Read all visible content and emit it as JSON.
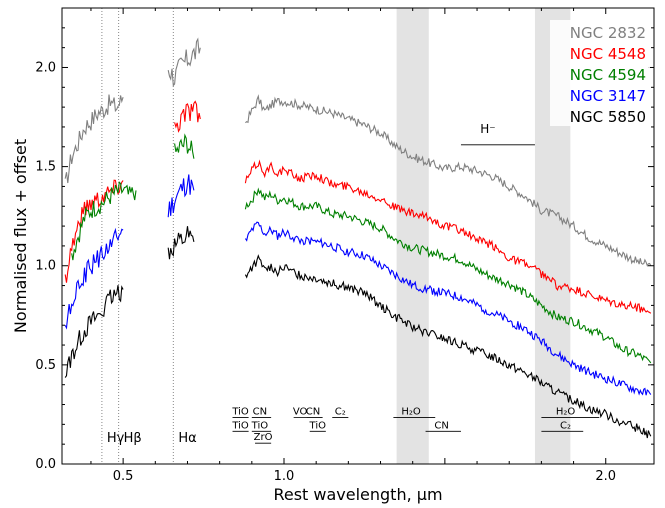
{
  "chart_data": {
    "type": "line",
    "xlabel": "Rest wavelength, μm",
    "ylabel": "Normalised flux + offset",
    "xlim": [
      0.31,
      2.15
    ],
    "ylim": [
      0.0,
      2.3
    ],
    "x_ticks": [
      {
        "value": 0.5,
        "label": "0.5"
      },
      {
        "value": 1.0,
        "label": "1.0"
      },
      {
        "value": 1.5,
        "label": ""
      },
      {
        "value": 2.0,
        "label": "2.0"
      }
    ],
    "y_ticks": [
      {
        "value": 0.0,
        "label": "0.0"
      },
      {
        "value": 0.5,
        "label": "0.5"
      },
      {
        "value": 1.0,
        "label": "1.0"
      },
      {
        "value": 1.5,
        "label": "1.5"
      },
      {
        "value": 2.0,
        "label": "2.0"
      }
    ],
    "shaded_regions": [
      [
        1.35,
        1.45
      ],
      [
        1.78,
        1.89
      ]
    ],
    "balmer_lines": [
      {
        "x": 0.434,
        "label": "Hγ"
      },
      {
        "x": 0.486,
        "label": "Hβ"
      },
      {
        "x": 0.656,
        "label": "Hα"
      }
    ],
    "band_labels": [
      {
        "label": "TiO",
        "x": 0.865,
        "row": 0,
        "x0": 0.84,
        "x1": 0.89
      },
      {
        "label": "CN",
        "x": 0.925,
        "row": 0,
        "x0": 0.9,
        "x1": 0.96
      },
      {
        "label": "TiO",
        "x": 0.865,
        "row": 1,
        "x0": 0.84,
        "x1": 0.89
      },
      {
        "label": "TiO",
        "x": 0.925,
        "row": 1,
        "x0": 0.9,
        "x1": 0.96
      },
      {
        "label": "ZrO",
        "x": 0.935,
        "row": 2,
        "x0": 0.91,
        "x1": 0.96
      },
      {
        "label": "VO",
        "x": 1.05,
        "row": 0,
        "x0": 1.03,
        "x1": 1.07
      },
      {
        "label": "CN",
        "x": 1.09,
        "row": 0,
        "x0": 1.07,
        "x1": 1.12
      },
      {
        "label": "TiO",
        "x": 1.105,
        "row": 1,
        "x0": 1.08,
        "x1": 1.13
      },
      {
        "label": "C₂",
        "x": 1.175,
        "row": 0,
        "x0": 1.15,
        "x1": 1.2
      },
      {
        "label": "H₂O",
        "x": 1.395,
        "row": 0,
        "x0": 1.34,
        "x1": 1.47
      },
      {
        "label": "CN",
        "x": 1.49,
        "row": 1,
        "x0": 1.44,
        "x1": 1.55
      },
      {
        "label": "H₂O",
        "x": 1.875,
        "row": 0,
        "x0": 1.8,
        "x1": 1.98
      },
      {
        "label": "C₂",
        "x": 1.875,
        "row": 1,
        "x0": 1.8,
        "x1": 1.93
      }
    ],
    "annotations": [
      {
        "label": "H⁻",
        "x": 1.61,
        "y": 1.67,
        "x0": 1.55,
        "x1": 1.78,
        "line_y": 1.61
      }
    ],
    "legend_position": "top-right",
    "series": [
      {
        "name": "NGC 2832",
        "color": "#808080",
        "segments": [
          [
            [
              0.32,
              1.4
            ],
            [
              0.34,
              1.55
            ],
            [
              0.36,
              1.62
            ],
            [
              0.38,
              1.7
            ],
            [
              0.4,
              1.73
            ],
            [
              0.42,
              1.77
            ],
            [
              0.44,
              1.79
            ],
            [
              0.46,
              1.82
            ],
            [
              0.48,
              1.8
            ],
            [
              0.5,
              1.85
            ]
          ],
          [
            [
              0.64,
              2.0
            ],
            [
              0.66,
              1.95
            ],
            [
              0.68,
              2.01
            ],
            [
              0.7,
              2.04
            ],
            [
              0.72,
              2.07
            ],
            [
              0.74,
              2.1
            ]
          ],
          [
            [
              0.88,
              1.72
            ],
            [
              0.9,
              1.78
            ],
            [
              0.92,
              1.84
            ],
            [
              0.94,
              1.78
            ],
            [
              0.96,
              1.81
            ],
            [
              0.98,
              1.83
            ],
            [
              1.0,
              1.83
            ],
            [
              1.05,
              1.81
            ],
            [
              1.1,
              1.79
            ],
            [
              1.15,
              1.77
            ],
            [
              1.2,
              1.74
            ],
            [
              1.25,
              1.71
            ],
            [
              1.3,
              1.67
            ],
            [
              1.35,
              1.6
            ],
            [
              1.4,
              1.55
            ],
            [
              1.45,
              1.52
            ],
            [
              1.5,
              1.49
            ],
            [
              1.55,
              1.5
            ],
            [
              1.6,
              1.48
            ],
            [
              1.65,
              1.45
            ],
            [
              1.7,
              1.4
            ],
            [
              1.75,
              1.35
            ],
            [
              1.8,
              1.28
            ],
            [
              1.85,
              1.25
            ],
            [
              1.9,
              1.2
            ],
            [
              1.95,
              1.14
            ],
            [
              2.0,
              1.1
            ],
            [
              2.05,
              1.06
            ],
            [
              2.1,
              1.02
            ],
            [
              2.14,
              1.0
            ]
          ]
        ]
      },
      {
        "name": "NGC 4548",
        "color": "#ff0000",
        "segments": [
          [
            [
              0.32,
              0.93
            ],
            [
              0.34,
              1.1
            ],
            [
              0.36,
              1.2
            ],
            [
              0.38,
              1.29
            ],
            [
              0.4,
              1.32
            ],
            [
              0.42,
              1.34
            ],
            [
              0.44,
              1.36
            ],
            [
              0.46,
              1.38
            ],
            [
              0.48,
              1.4
            ],
            [
              0.5,
              1.43
            ]
          ],
          [
            [
              0.66,
              1.7
            ],
            [
              0.68,
              1.75
            ],
            [
              0.7,
              1.78
            ],
            [
              0.72,
              1.8
            ],
            [
              0.74,
              1.74
            ]
          ],
          [
            [
              0.88,
              1.42
            ],
            [
              0.9,
              1.48
            ],
            [
              0.92,
              1.52
            ],
            [
              0.94,
              1.47
            ],
            [
              0.96,
              1.5
            ],
            [
              0.98,
              1.47
            ],
            [
              1.0,
              1.48
            ],
            [
              1.05,
              1.44
            ],
            [
              1.1,
              1.46
            ],
            [
              1.15,
              1.41
            ],
            [
              1.2,
              1.4
            ],
            [
              1.25,
              1.37
            ],
            [
              1.3,
              1.34
            ],
            [
              1.35,
              1.29
            ],
            [
              1.4,
              1.26
            ],
            [
              1.45,
              1.24
            ],
            [
              1.5,
              1.2
            ],
            [
              1.55,
              1.18
            ],
            [
              1.6,
              1.13
            ],
            [
              1.65,
              1.1
            ],
            [
              1.7,
              1.04
            ],
            [
              1.75,
              1.01
            ],
            [
              1.8,
              0.96
            ],
            [
              1.85,
              0.9
            ],
            [
              1.9,
              0.88
            ],
            [
              1.95,
              0.85
            ],
            [
              2.0,
              0.82
            ],
            [
              2.05,
              0.8
            ],
            [
              2.1,
              0.79
            ],
            [
              2.14,
              0.76
            ]
          ]
        ]
      },
      {
        "name": "NGC 4594",
        "color": "#008000",
        "segments": [
          [
            [
              0.34,
              1.05
            ],
            [
              0.36,
              1.15
            ],
            [
              0.38,
              1.24
            ],
            [
              0.4,
              1.28
            ],
            [
              0.42,
              1.3
            ],
            [
              0.44,
              1.32
            ],
            [
              0.46,
              1.35
            ],
            [
              0.48,
              1.37
            ],
            [
              0.5,
              1.38
            ],
            [
              0.52,
              1.35
            ],
            [
              0.54,
              1.38
            ]
          ],
          [
            [
              0.66,
              1.56
            ],
            [
              0.68,
              1.6
            ],
            [
              0.7,
              1.62
            ],
            [
              0.72,
              1.54
            ]
          ],
          [
            [
              0.88,
              1.3
            ],
            [
              0.9,
              1.33
            ],
            [
              0.92,
              1.39
            ],
            [
              0.94,
              1.34
            ],
            [
              0.96,
              1.36
            ],
            [
              0.98,
              1.33
            ],
            [
              1.0,
              1.34
            ],
            [
              1.05,
              1.3
            ],
            [
              1.1,
              1.3
            ],
            [
              1.15,
              1.26
            ],
            [
              1.2,
              1.25
            ],
            [
              1.25,
              1.22
            ],
            [
              1.3,
              1.19
            ],
            [
              1.35,
              1.13
            ],
            [
              1.4,
              1.09
            ],
            [
              1.45,
              1.07
            ],
            [
              1.5,
              1.05
            ],
            [
              1.55,
              1.03
            ],
            [
              1.6,
              0.98
            ],
            [
              1.65,
              0.94
            ],
            [
              1.7,
              0.91
            ],
            [
              1.75,
              0.86
            ],
            [
              1.8,
              0.8
            ],
            [
              1.85,
              0.74
            ],
            [
              1.9,
              0.72
            ],
            [
              1.95,
              0.68
            ],
            [
              2.0,
              0.64
            ],
            [
              2.05,
              0.58
            ],
            [
              2.1,
              0.55
            ],
            [
              2.14,
              0.51
            ]
          ]
        ]
      },
      {
        "name": "NGC 3147",
        "color": "#0000ff",
        "segments": [
          [
            [
              0.32,
              0.7
            ],
            [
              0.34,
              0.8
            ],
            [
              0.36,
              0.88
            ],
            [
              0.38,
              0.95
            ],
            [
              0.4,
              1.0
            ],
            [
              0.42,
              1.03
            ],
            [
              0.44,
              1.07
            ],
            [
              0.46,
              1.1
            ],
            [
              0.48,
              1.14
            ],
            [
              0.5,
              1.18
            ]
          ],
          [
            [
              0.64,
              1.27
            ],
            [
              0.66,
              1.33
            ],
            [
              0.68,
              1.38
            ],
            [
              0.7,
              1.42
            ],
            [
              0.72,
              1.38
            ]
          ],
          [
            [
              0.88,
              1.12
            ],
            [
              0.9,
              1.18
            ],
            [
              0.92,
              1.21
            ],
            [
              0.94,
              1.16
            ],
            [
              0.96,
              1.18
            ],
            [
              0.98,
              1.15
            ],
            [
              1.0,
              1.17
            ],
            [
              1.05,
              1.13
            ],
            [
              1.1,
              1.12
            ],
            [
              1.15,
              1.1
            ],
            [
              1.2,
              1.07
            ],
            [
              1.25,
              1.05
            ],
            [
              1.3,
              1.0
            ],
            [
              1.35,
              0.95
            ],
            [
              1.4,
              0.9
            ],
            [
              1.45,
              0.88
            ],
            [
              1.5,
              0.86
            ],
            [
              1.55,
              0.84
            ],
            [
              1.6,
              0.8
            ],
            [
              1.65,
              0.76
            ],
            [
              1.7,
              0.72
            ],
            [
              1.75,
              0.68
            ],
            [
              1.8,
              0.62
            ],
            [
              1.85,
              0.55
            ],
            [
              1.9,
              0.5
            ],
            [
              1.95,
              0.46
            ],
            [
              2.0,
              0.43
            ],
            [
              2.05,
              0.4
            ],
            [
              2.1,
              0.37
            ],
            [
              2.14,
              0.35
            ]
          ]
        ]
      },
      {
        "name": "NGC 5850",
        "color": "#000000",
        "segments": [
          [
            [
              0.32,
              0.45
            ],
            [
              0.34,
              0.55
            ],
            [
              0.36,
              0.62
            ],
            [
              0.38,
              0.68
            ],
            [
              0.4,
              0.72
            ],
            [
              0.42,
              0.75
            ],
            [
              0.44,
              0.78
            ],
            [
              0.46,
              0.83
            ],
            [
              0.48,
              0.85
            ],
            [
              0.5,
              0.88
            ]
          ],
          [
            [
              0.64,
              1.08
            ],
            [
              0.66,
              1.11
            ],
            [
              0.68,
              1.13
            ],
            [
              0.7,
              1.16
            ],
            [
              0.72,
              1.12
            ]
          ],
          [
            [
              0.88,
              0.95
            ],
            [
              0.9,
              0.99
            ],
            [
              0.92,
              1.03
            ],
            [
              0.94,
              0.98
            ],
            [
              0.96,
              1.0
            ],
            [
              0.98,
              0.97
            ],
            [
              1.0,
              0.99
            ],
            [
              1.05,
              0.95
            ],
            [
              1.1,
              0.94
            ],
            [
              1.15,
              0.91
            ],
            [
              1.2,
              0.89
            ],
            [
              1.25,
              0.86
            ],
            [
              1.3,
              0.8
            ],
            [
              1.35,
              0.74
            ],
            [
              1.4,
              0.69
            ],
            [
              1.45,
              0.66
            ],
            [
              1.5,
              0.63
            ],
            [
              1.55,
              0.6
            ],
            [
              1.6,
              0.57
            ],
            [
              1.65,
              0.54
            ],
            [
              1.7,
              0.5
            ],
            [
              1.75,
              0.46
            ],
            [
              1.8,
              0.41
            ],
            [
              1.85,
              0.36
            ],
            [
              1.9,
              0.32
            ],
            [
              1.95,
              0.28
            ],
            [
              2.0,
              0.25
            ],
            [
              2.05,
              0.21
            ],
            [
              2.1,
              0.18
            ],
            [
              2.14,
              0.14
            ]
          ]
        ]
      }
    ]
  }
}
